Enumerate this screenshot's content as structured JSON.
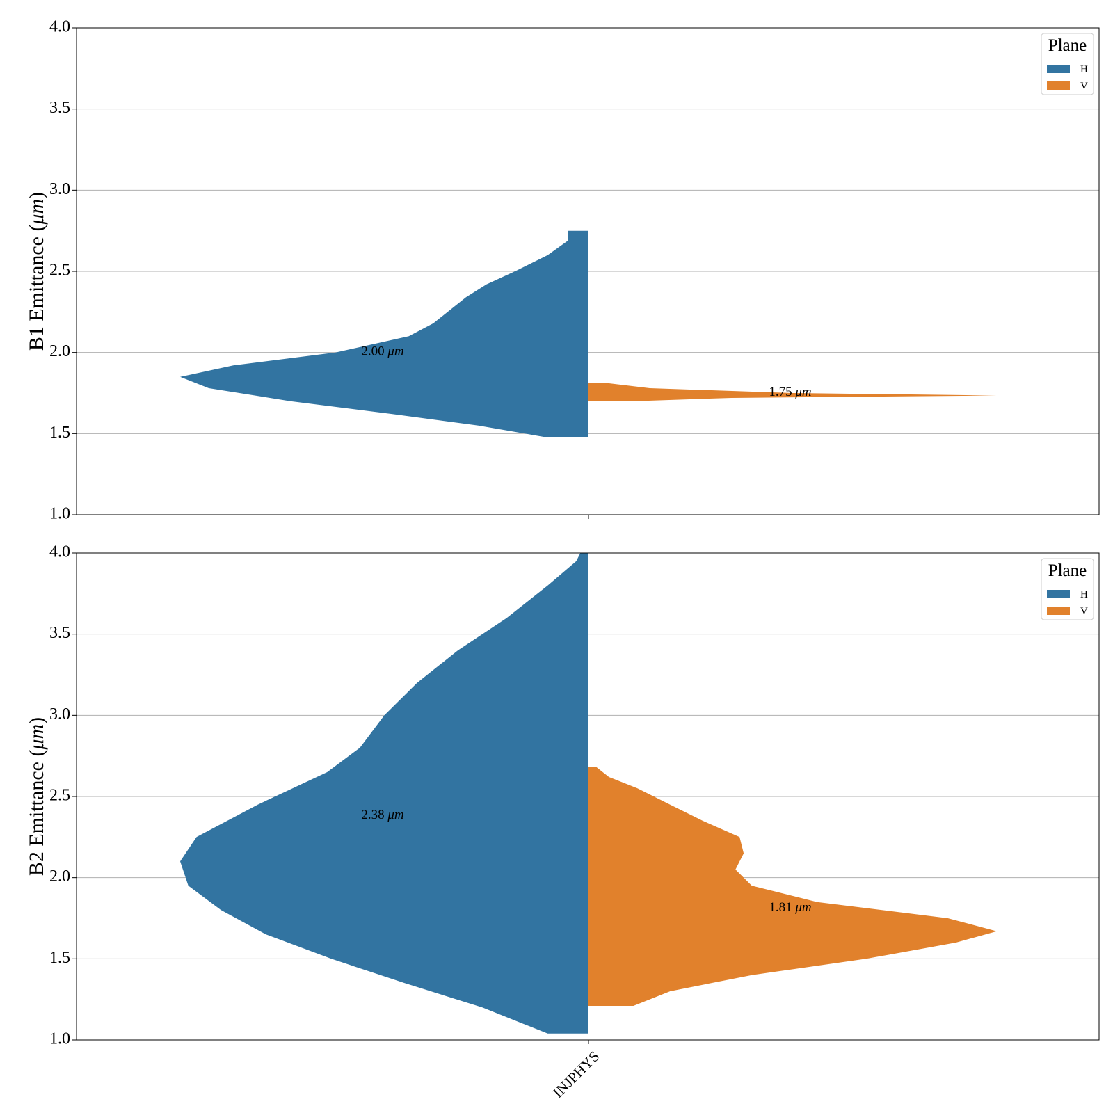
{
  "chart_data": [
    {
      "type": "violin",
      "ylabel_main": "B1 Emittance (",
      "ylabel_unit": "μm",
      "ylabel_close": ")",
      "ylim": [
        1.0,
        4.0
      ],
      "yticks": [
        "1.0",
        "1.5",
        "2.0",
        "2.5",
        "3.0",
        "3.5",
        "4.0"
      ],
      "grid": "y",
      "categories": [
        "INJPHYS"
      ],
      "legend": {
        "title": "Plane",
        "position": "top-right",
        "entries": [
          "H",
          "V"
        ]
      },
      "colors": {
        "H": "#3274a1",
        "V": "#e1812c"
      },
      "series": [
        {
          "name": "H",
          "side": "left",
          "annotation_value": "2.00 ",
          "annotation_unit": "μm",
          "annotation_y": 2.0,
          "profile": [
            [
              1.48,
              0.11
            ],
            [
              1.55,
              0.27
            ],
            [
              1.62,
              0.48
            ],
            [
              1.7,
              0.73
            ],
            [
              1.78,
              0.93
            ],
            [
              1.85,
              1.0
            ],
            [
              1.92,
              0.87
            ],
            [
              2.0,
              0.62
            ],
            [
              2.1,
              0.44
            ],
            [
              2.18,
              0.38
            ],
            [
              2.26,
              0.34
            ],
            [
              2.34,
              0.3
            ],
            [
              2.42,
              0.25
            ],
            [
              2.5,
              0.18
            ],
            [
              2.6,
              0.1
            ],
            [
              2.69,
              0.05
            ],
            [
              2.75,
              0.05
            ]
          ]
        },
        {
          "name": "V",
          "side": "right",
          "annotation_value": "1.75 ",
          "annotation_unit": "μm",
          "annotation_y": 1.75,
          "profile": [
            [
              1.7,
              0.11
            ],
            [
              1.72,
              0.35
            ],
            [
              1.735,
              1.0
            ],
            [
              1.75,
              0.5
            ],
            [
              1.78,
              0.15
            ],
            [
              1.81,
              0.05
            ]
          ]
        }
      ]
    },
    {
      "type": "violin",
      "ylabel_main": "B2 Emittance (",
      "ylabel_unit": "μm",
      "ylabel_close": ")",
      "ylim": [
        1.0,
        4.0
      ],
      "yticks": [
        "1.0",
        "1.5",
        "2.0",
        "2.5",
        "3.0",
        "3.5",
        "4.0"
      ],
      "grid": "y",
      "categories": [
        "INJPHYS"
      ],
      "legend": {
        "title": "Plane",
        "position": "top-right",
        "entries": [
          "H",
          "V"
        ]
      },
      "colors": {
        "H": "#3274a1",
        "V": "#e1812c"
      },
      "series": [
        {
          "name": "H",
          "side": "left",
          "annotation_value": "2.38 ",
          "annotation_unit": "μm",
          "annotation_y": 2.38,
          "profile": [
            [
              1.04,
              0.1
            ],
            [
              1.1,
              0.16
            ],
            [
              1.2,
              0.26
            ],
            [
              1.35,
              0.45
            ],
            [
              1.5,
              0.63
            ],
            [
              1.65,
              0.79
            ],
            [
              1.8,
              0.9
            ],
            [
              1.95,
              0.98
            ],
            [
              2.1,
              1.0
            ],
            [
              2.25,
              0.96
            ],
            [
              2.45,
              0.81
            ],
            [
              2.65,
              0.64
            ],
            [
              2.8,
              0.56
            ],
            [
              3.0,
              0.5
            ],
            [
              3.2,
              0.42
            ],
            [
              3.4,
              0.32
            ],
            [
              3.6,
              0.2
            ],
            [
              3.8,
              0.1
            ],
            [
              3.95,
              0.03
            ],
            [
              4.0,
              0.02
            ]
          ]
        },
        {
          "name": "V",
          "side": "right",
          "annotation_value": "1.81 ",
          "annotation_unit": "μm",
          "annotation_y": 1.81,
          "profile": [
            [
              1.21,
              0.11
            ],
            [
              1.3,
              0.2
            ],
            [
              1.4,
              0.4
            ],
            [
              1.5,
              0.68
            ],
            [
              1.6,
              0.9
            ],
            [
              1.67,
              1.0
            ],
            [
              1.75,
              0.88
            ],
            [
              1.85,
              0.56
            ],
            [
              1.95,
              0.4
            ],
            [
              2.05,
              0.36
            ],
            [
              2.15,
              0.38
            ],
            [
              2.25,
              0.37
            ],
            [
              2.35,
              0.28
            ],
            [
              2.45,
              0.2
            ],
            [
              2.55,
              0.12
            ],
            [
              2.62,
              0.05
            ],
            [
              2.68,
              0.02
            ]
          ]
        }
      ]
    }
  ],
  "xtick_label": "INJPHYS"
}
